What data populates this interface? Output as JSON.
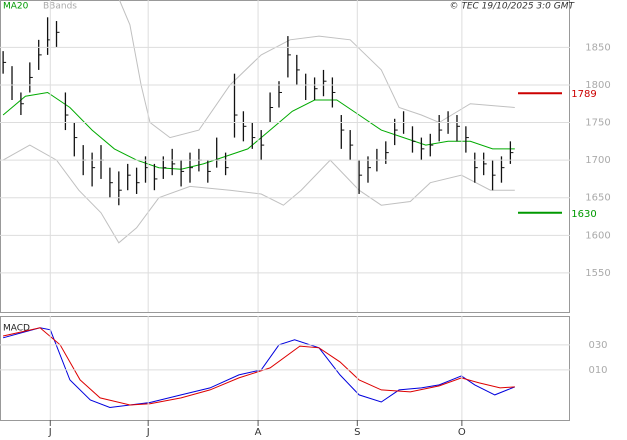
{
  "chart_data": [
    {
      "type": "ohlc",
      "source_note": "© TEC 19/10/2025 3:0 GMT",
      "xlim": [
        -0.7,
        127.4
      ],
      "ylim": [
        1498,
        1913
      ],
      "yticks": [
        1550,
        1600,
        1650,
        1700,
        1750,
        1800,
        1850
      ],
      "xticks": [
        {
          "value": 10.6,
          "label": "J"
        },
        {
          "value": 32.6,
          "label": "J"
        },
        {
          "value": 57.3,
          "label": "A"
        },
        {
          "value": 79.6,
          "label": "S"
        },
        {
          "value": 103.1,
          "label": "O"
        }
      ],
      "grid": true,
      "bar_color": "#111111",
      "bars": {
        "x": [
          0,
          2,
          4,
          6,
          8,
          10,
          12,
          14,
          16,
          18,
          20,
          22,
          24,
          26,
          28,
          30,
          32,
          34,
          36,
          38,
          40,
          42,
          44,
          46,
          48,
          50,
          52,
          54,
          56,
          58,
          60,
          62,
          64,
          66,
          68,
          70,
          72,
          74,
          76,
          78,
          80,
          82,
          84,
          86,
          88,
          90,
          92,
          94,
          96,
          98,
          100,
          102,
          104,
          106,
          108,
          110,
          112,
          114
        ],
        "high": [
          1845,
          1825,
          1790,
          1830,
          1860,
          1890,
          1885,
          1790,
          1750,
          1720,
          1710,
          1720,
          1690,
          1685,
          1695,
          1690,
          1705,
          1695,
          1705,
          1715,
          1700,
          1710,
          1715,
          1700,
          1730,
          1710,
          1815,
          1765,
          1750,
          1740,
          1790,
          1805,
          1865,
          1840,
          1815,
          1810,
          1820,
          1810,
          1760,
          1740,
          1700,
          1705,
          1715,
          1725,
          1755,
          1765,
          1745,
          1730,
          1735,
          1760,
          1765,
          1760,
          1745,
          1710,
          1710,
          1700,
          1705,
          1725
        ],
        "low": [
          1815,
          1780,
          1760,
          1790,
          1820,
          1840,
          1850,
          1740,
          1705,
          1680,
          1665,
          1675,
          1650,
          1640,
          1660,
          1655,
          1670,
          1660,
          1675,
          1680,
          1665,
          1670,
          1685,
          1670,
          1690,
          1680,
          1730,
          1725,
          1715,
          1700,
          1750,
          1770,
          1810,
          1800,
          1780,
          1780,
          1785,
          1770,
          1715,
          1700,
          1655,
          1670,
          1685,
          1695,
          1720,
          1735,
          1710,
          1700,
          1705,
          1725,
          1735,
          1725,
          1710,
          1670,
          1680,
          1660,
          1670,
          1695
        ],
        "close": [
          1830,
          1800,
          1775,
          1810,
          1840,
          1860,
          1870,
          1760,
          1730,
          1700,
          1690,
          1700,
          1670,
          1660,
          1680,
          1670,
          1690,
          1675,
          1690,
          1695,
          1685,
          1690,
          1700,
          1685,
          1700,
          1690,
          1760,
          1745,
          1730,
          1720,
          1770,
          1790,
          1840,
          1820,
          1800,
          1795,
          1805,
          1790,
          1740,
          1720,
          1680,
          1690,
          1700,
          1710,
          1740,
          1750,
          1725,
          1715,
          1720,
          1740,
          1750,
          1745,
          1730,
          1690,
          1695,
          1680,
          1690,
          1710
        ]
      },
      "ma": {
        "name": "MA20",
        "color": "#00aa00",
        "x": [
          0,
          5,
          10,
          15,
          20,
          25,
          30,
          35,
          40,
          45,
          50,
          55,
          60,
          65,
          70,
          75,
          80,
          85,
          90,
          95,
          100,
          105,
          110,
          115
        ],
        "values": [
          1760,
          1785,
          1790,
          1770,
          1740,
          1715,
          1700,
          1690,
          1688,
          1695,
          1705,
          1715,
          1740,
          1765,
          1780,
          1780,
          1760,
          1740,
          1730,
          1720,
          1725,
          1725,
          1715,
          1715
        ]
      },
      "bands": {
        "name": "BBands",
        "color": "#c0c0c0",
        "upper": {
          "x": [
            26,
            28.5,
            31,
            33,
            37.5,
            44,
            51,
            58,
            64.5,
            71,
            78,
            85,
            89,
            94,
            98,
            105,
            115
          ],
          "values": [
            1915,
            1880,
            1800,
            1750,
            1730,
            1740,
            1800,
            1840,
            1860,
            1865,
            1860,
            1820,
            1770,
            1760,
            1750,
            1775,
            1770
          ]
        },
        "lower": {
          "x": [
            0,
            6,
            12,
            17,
            22,
            26,
            30,
            35,
            42,
            51,
            58,
            63,
            67,
            73.5,
            80,
            85,
            91.5,
            96,
            103,
            109.5,
            115
          ],
          "values": [
            1700,
            1720,
            1700,
            1660,
            1630,
            1590,
            1610,
            1650,
            1665,
            1660,
            1655,
            1640,
            1660,
            1700,
            1660,
            1640,
            1645,
            1670,
            1680,
            1660,
            1660
          ]
        }
      },
      "levels": [
        {
          "value": 1789,
          "color": "#cc0000"
        },
        {
          "value": 1630,
          "color": "#009900"
        }
      ]
    },
    {
      "type": "line",
      "title": "MACD",
      "xlim": [
        -0.7,
        127.4
      ],
      "ylim": [
        -30,
        53
      ],
      "yticks": [
        {
          "value": 10,
          "label": "010"
        },
        {
          "value": 30,
          "label": "030"
        }
      ],
      "grid": true,
      "series": [
        {
          "color": "#0000dd",
          "x": [
            0,
            8.3,
            10.6,
            15,
            19.6,
            24,
            28.5,
            33,
            40,
            46.5,
            53,
            58,
            62,
            65.5,
            71,
            75.7,
            80,
            85,
            89,
            94,
            98,
            103,
            106,
            110.5,
            115
          ],
          "values": [
            35.6,
            43.6,
            42,
            2,
            -14,
            -20,
            -18,
            -16,
            -10,
            -4.4,
            6,
            10,
            30,
            34,
            27.6,
            6,
            -10,
            -15.6,
            -6,
            -4.4,
            -2,
            5.2,
            -2,
            -10,
            -3.6
          ]
        },
        {
          "color": "#dd0000",
          "x": [
            0,
            8.3,
            12.8,
            17.3,
            21.8,
            28.5,
            33,
            40,
            46.5,
            53,
            60,
            66.7,
            71,
            75.7,
            80,
            85,
            91.5,
            98,
            103,
            107,
            111.7,
            115
          ],
          "values": [
            37,
            43.6,
            30,
            2,
            -12.4,
            -18,
            -17,
            -12.4,
            -6,
            3.6,
            11.6,
            29,
            27.6,
            16.4,
            2,
            -6,
            -7.6,
            -2.8,
            3.6,
            -0.4,
            -4.4,
            -3.6
          ]
        }
      ]
    }
  ]
}
